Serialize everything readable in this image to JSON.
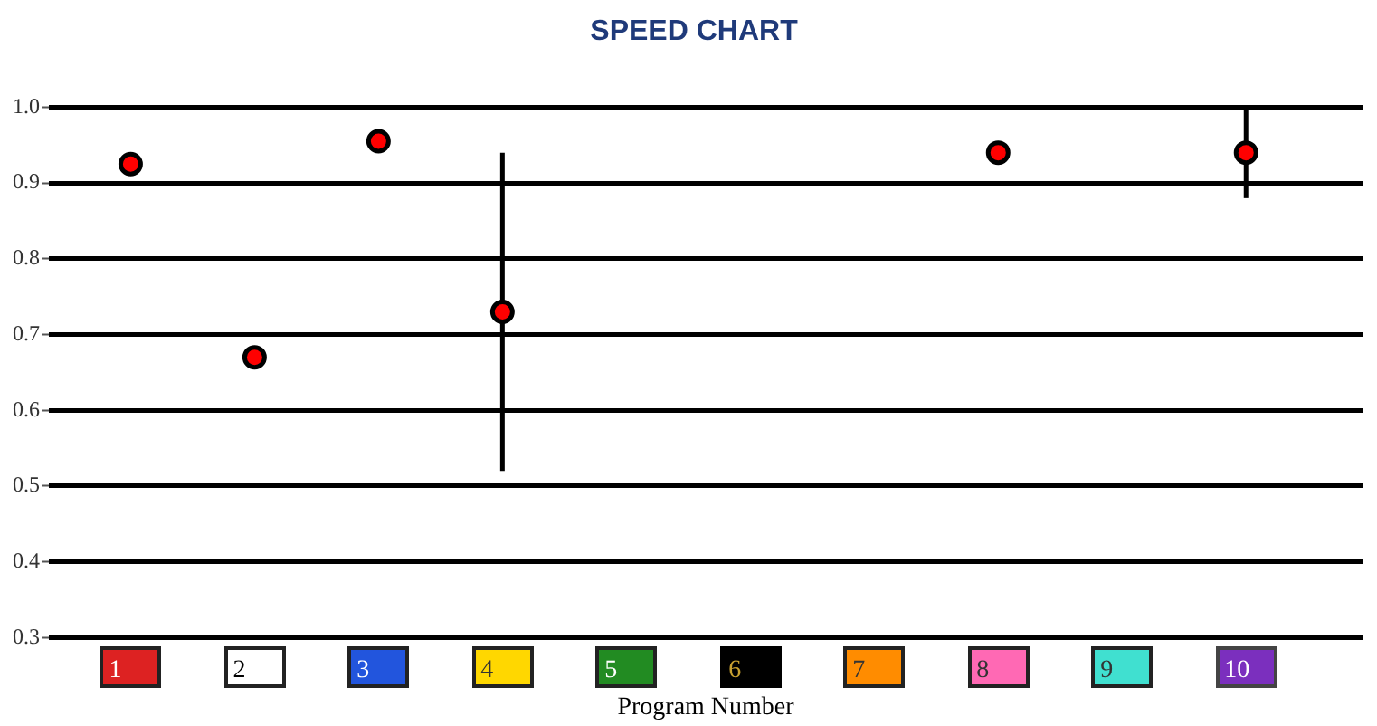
{
  "chart_data": {
    "type": "scatter",
    "title": "SPEED CHART",
    "xlabel": "Program Number",
    "categories": [
      "1",
      "2",
      "3",
      "4",
      "5",
      "6",
      "7",
      "8",
      "9",
      "10"
    ],
    "series": [
      {
        "color": "#ff0000",
        "values": [
          0.925,
          0.67,
          0.955,
          0.73,
          null,
          null,
          null,
          0.94,
          null,
          0.94
        ],
        "errors": [
          null,
          null,
          null,
          [
            0.52,
            0.94
          ],
          null,
          null,
          null,
          null,
          null,
          [
            0.88,
            1.0
          ]
        ]
      }
    ],
    "ylim": [
      0.3,
      1.0
    ],
    "yticks": [
      0.3,
      0.4,
      0.5,
      0.6,
      0.7,
      0.8,
      0.9,
      {
        "value": 1.0,
        "label": "1.0"
      }
    ],
    "grid": "y",
    "legend": false,
    "marker": "circle"
  }
}
